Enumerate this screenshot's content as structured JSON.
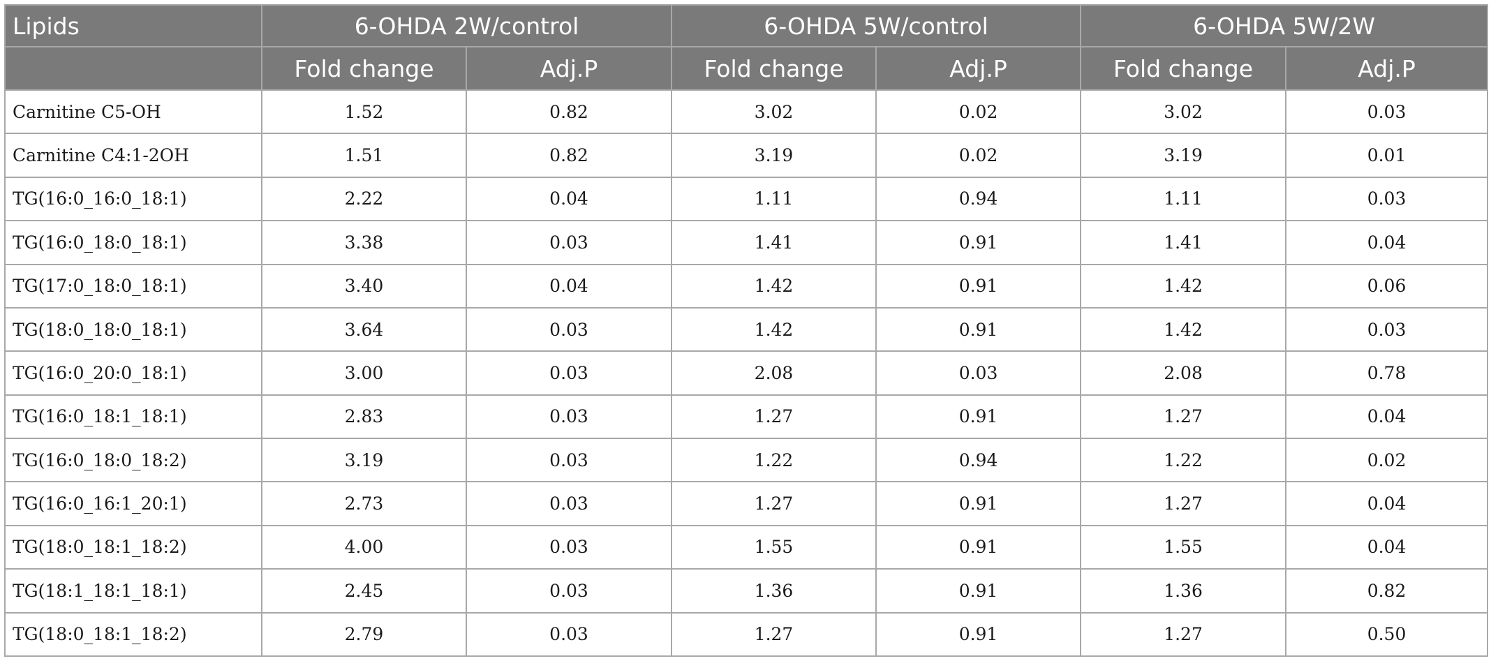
{
  "header": {
    "lipids_label": "Lipids",
    "groups": [
      "6-OHDA 2W/control",
      "6-OHDA 5W/control",
      "6-OHDA 5W/2W"
    ],
    "subcolumns": [
      "Fold change",
      "Adj.P",
      "Fold change",
      "Adj.P",
      "Fold change",
      "Adj.P"
    ]
  },
  "rows": [
    {
      "lipid": "Carnitine C5-OH",
      "values": [
        "1.52",
        "0.82",
        "3.02",
        "0.02",
        "3.02",
        "0.03"
      ]
    },
    {
      "lipid": "Carnitine C4:1-2OH",
      "values": [
        "1.51",
        "0.82",
        "3.19",
        "0.02",
        "3.19",
        "0.01"
      ]
    },
    {
      "lipid": "TG(16:0_16:0_18:1)",
      "values": [
        "2.22",
        "0.04",
        "1.11",
        "0.94",
        "1.11",
        "0.03"
      ]
    },
    {
      "lipid": "TG(16:0_18:0_18:1)",
      "values": [
        "3.38",
        "0.03",
        "1.41",
        "0.91",
        "1.41",
        "0.04"
      ]
    },
    {
      "lipid": "TG(17:0_18:0_18:1)",
      "values": [
        "3.40",
        "0.04",
        "1.42",
        "0.91",
        "1.42",
        "0.06"
      ]
    },
    {
      "lipid": "TG(18:0_18:0_18:1)",
      "values": [
        "3.64",
        "0.03",
        "1.42",
        "0.91",
        "1.42",
        "0.03"
      ]
    },
    {
      "lipid": "TG(16:0_20:0_18:1)",
      "values": [
        "3.00",
        "0.03",
        "2.08",
        "0.03",
        "2.08",
        "0.78"
      ]
    },
    {
      "lipid": "TG(16:0_18:1_18:1)",
      "values": [
        "2.83",
        "0.03",
        "1.27",
        "0.91",
        "1.27",
        "0.04"
      ]
    },
    {
      "lipid": "TG(16:0_18:0_18:2)",
      "values": [
        "3.19",
        "0.03",
        "1.22",
        "0.94",
        "1.22",
        "0.02"
      ]
    },
    {
      "lipid": "TG(16:0_16:1_20:1)",
      "values": [
        "2.73",
        "0.03",
        "1.27",
        "0.91",
        "1.27",
        "0.04"
      ]
    },
    {
      "lipid": "TG(18:0_18:1_18:2)",
      "values": [
        "4.00",
        "0.03",
        "1.55",
        "0.91",
        "1.55",
        "0.04"
      ]
    },
    {
      "lipid": "TG(18:1_18:1_18:1)",
      "values": [
        "2.45",
        "0.03",
        "1.36",
        "0.91",
        "1.36",
        "0.82"
      ]
    },
    {
      "lipid": "TG(18:0_18:1_18:2)",
      "values": [
        "2.79",
        "0.03",
        "1.27",
        "0.91",
        "1.27",
        "0.50"
      ]
    }
  ],
  "colors": {
    "header_background": "#7a7a7a",
    "header_text": "#ffffff",
    "grid_line": "#a8a8a8",
    "body_text": "#1a1a1a"
  }
}
